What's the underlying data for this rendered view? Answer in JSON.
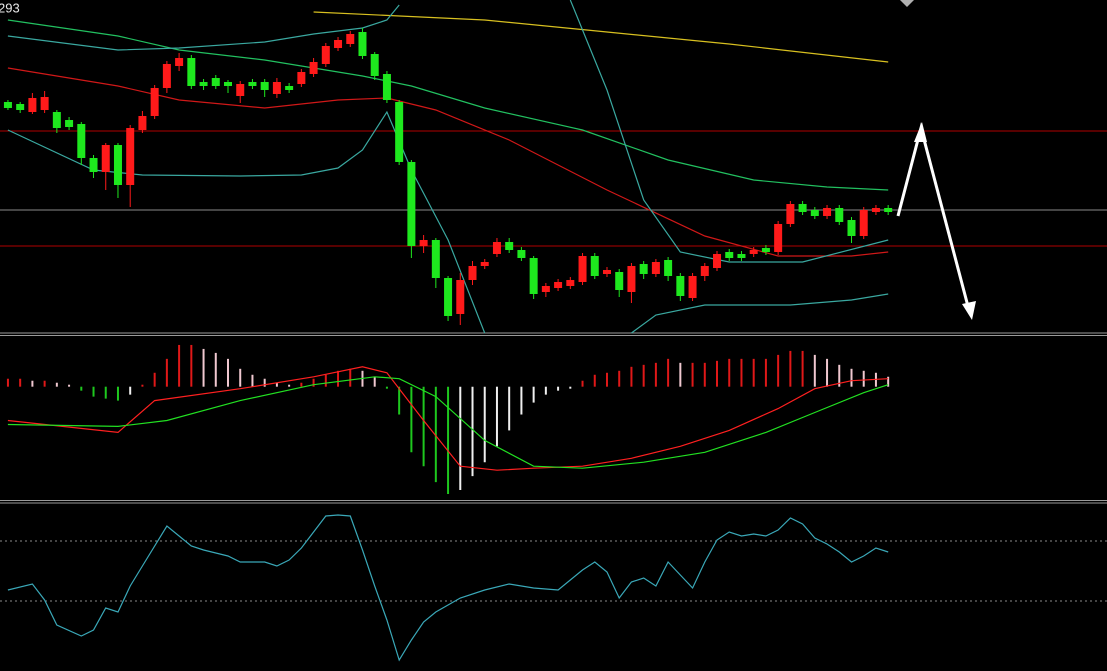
{
  "chart_data": [
    {
      "type": "candlestick",
      "label": "293",
      "xlim": [
        0.35,
        90.9
      ],
      "ylim": [
        0,
        333
      ],
      "up_color": "#ff1a1a",
      "down_color": "#1ee81e",
      "open": [
        231,
        229,
        221,
        223,
        221,
        213,
        209,
        175,
        161,
        188,
        148,
        203,
        217,
        245,
        267,
        275,
        251,
        255,
        251,
        237,
        251,
        251,
        239,
        247,
        249,
        259,
        269,
        285,
        289,
        301,
        279,
        259,
        231,
        171,
        87,
        93,
        55,
        19,
        53,
        67,
        79,
        91,
        83,
        75,
        41,
        45,
        47,
        51,
        77,
        59,
        61,
        41,
        69,
        59,
        73,
        57,
        35,
        57,
        65,
        81,
        79,
        79,
        85,
        81,
        109,
        129,
        123,
        117,
        125,
        113,
        97,
        121,
        125
      ],
      "high": [
        233,
        231,
        240,
        242,
        223,
        216,
        211,
        178,
        190,
        190,
        208,
        222,
        248,
        272,
        280,
        278,
        254,
        258,
        253,
        252,
        254,
        254,
        255,
        250,
        264,
        275,
        290,
        296,
        302,
        305,
        281,
        262,
        233,
        173,
        98,
        95,
        57,
        60,
        72,
        74,
        95,
        95,
        86,
        77,
        50,
        54,
        56,
        80,
        80,
        66,
        64,
        70,
        72,
        74,
        76,
        60,
        60,
        70,
        82,
        84,
        82,
        86,
        88,
        112,
        132,
        132,
        126,
        128,
        128,
        116,
        126,
        128,
        128
      ],
      "low": [
        223,
        220,
        219,
        220,
        200,
        203,
        168,
        155,
        143,
        135,
        126,
        200,
        214,
        240,
        262,
        244,
        243,
        244,
        240,
        230,
        244,
        236,
        235,
        240,
        246,
        256,
        266,
        282,
        286,
        274,
        253,
        230,
        168,
        75,
        80,
        45,
        12,
        8,
        48,
        64,
        76,
        80,
        72,
        34,
        36,
        42,
        44,
        48,
        54,
        56,
        36,
        30,
        54,
        56,
        52,
        32,
        32,
        52,
        62,
        72,
        72,
        76,
        78,
        78,
        106,
        118,
        114,
        114,
        108,
        90,
        94,
        118,
        118
      ],
      "close": [
        225,
        223,
        235,
        236,
        205,
        206,
        175,
        161,
        188,
        148,
        205,
        217,
        245,
        269,
        275,
        247,
        247,
        247,
        247,
        249,
        247,
        243,
        251,
        243,
        261,
        271,
        287,
        293,
        299,
        277,
        257,
        233,
        171,
        87,
        93,
        55,
        17,
        53,
        67,
        71,
        91,
        83,
        75,
        39,
        47,
        51,
        53,
        77,
        57,
        63,
        43,
        67,
        59,
        71,
        57,
        37,
        57,
        67,
        79,
        75,
        75,
        83,
        81,
        109,
        129,
        121,
        117,
        125,
        111,
        97,
        123,
        125,
        121
      ],
      "lines": [
        {
          "color": "#d8c020",
          "x": [
            26,
            40,
            50,
            60,
            73
          ],
          "values": [
            321,
            313,
            301,
            289,
            271
          ]
        },
        {
          "color": "#22c060",
          "x": [
            1,
            10,
            15,
            22,
            30,
            34,
            40,
            48,
            55,
            62,
            68,
            73
          ],
          "values": [
            313,
            297,
            283,
            273,
            257,
            247,
            225,
            203,
            173,
            153,
            146,
            143
          ]
        },
        {
          "color": "#d01818",
          "x": [
            1,
            10,
            15,
            22,
            28,
            32,
            36,
            42,
            50,
            58,
            64,
            70,
            73
          ],
          "values": [
            265,
            247,
            233,
            225,
            233,
            235,
            223,
            193,
            143,
            97,
            77,
            77,
            81
          ]
        },
        {
          "color": "#3aa8a0",
          "x": [
            1,
            10,
            15,
            22,
            26,
            30,
            32,
            33,
            34,
            47,
            50,
            53,
            56,
            60,
            66,
            73
          ],
          "values": [
            297,
            283,
            285,
            291,
            299,
            305,
            313,
            328,
            null,
            333,
            243,
            133,
            81,
            71,
            71,
            93
          ]
        },
        {
          "color": "#3aa8a0",
          "x": [
            1,
            8,
            12,
            20,
            25,
            28,
            30,
            32,
            34,
            37,
            40,
            45,
            52,
            54,
            58,
            65,
            70,
            73
          ],
          "values": [
            203,
            163,
            158,
            157,
            158,
            165,
            183,
            221,
            163,
            93,
            0,
            null,
            0,
            18,
            28,
            28,
            33,
            39
          ]
        }
      ],
      "hlines": [
        {
          "value": 202,
          "color": "#b00000"
        },
        {
          "value": 123,
          "color": "#8a8a8a"
        },
        {
          "value": 87,
          "color": "#b00000"
        }
      ]
    },
    {
      "type": "macd",
      "xlim": [
        0.35,
        90.9
      ],
      "ylim": [
        -114,
        51
      ],
      "pos_color": "#e01818",
      "pos_fade_color": "#f0c8d0",
      "neg_color": "#1ec81e",
      "neg_fade_color": "#f0f0f0",
      "values": [
        8,
        8,
        6,
        6,
        4,
        2,
        -4,
        -10,
        -12,
        -14,
        -8,
        2,
        14,
        28,
        42,
        42,
        38,
        34,
        28,
        18,
        12,
        8,
        4,
        2,
        4,
        8,
        12,
        16,
        18,
        16,
        10,
        -2,
        -28,
        -66,
        -80,
        -96,
        -108,
        -104,
        -90,
        -76,
        -60,
        -44,
        -28,
        -16,
        -8,
        -4,
        -2,
        6,
        12,
        14,
        16,
        20,
        22,
        24,
        28,
        24,
        24,
        24,
        26,
        28,
        28,
        28,
        28,
        32,
        36,
        36,
        32,
        28,
        22,
        18,
        16,
        14,
        10
      ],
      "lines": [
        {
          "color": "#ff2020",
          "x": [
            1,
            10,
            13,
            20,
            26,
            30,
            32,
            35,
            38,
            41,
            44,
            48,
            52,
            56,
            60,
            64,
            67,
            70,
            73
          ],
          "values": [
            -34,
            -46,
            -14,
            -2,
            10,
            20,
            14,
            -34,
            -80,
            -84,
            -82,
            -80,
            -72,
            -60,
            -44,
            -22,
            -2,
            6,
            8
          ]
        },
        {
          "color": "#22e022",
          "x": [
            1,
            10,
            14,
            20,
            26,
            31,
            33,
            36,
            40,
            44,
            48,
            53,
            58,
            63,
            67,
            71,
            73
          ],
          "values": [
            -38,
            -40,
            -34,
            -14,
            2,
            10,
            8,
            -10,
            -54,
            -80,
            -82,
            -76,
            -66,
            -46,
            -26,
            -6,
            2
          ]
        }
      ]
    },
    {
      "type": "line",
      "xlim": [
        0.35,
        90.9
      ],
      "ylim": [
        0,
        167
      ],
      "levels": [
        129,
        69
      ],
      "lines": [
        {
          "color": "#3aa8b8",
          "x": [
            1,
            3,
            4,
            5,
            7,
            8,
            9,
            10,
            11,
            12,
            14,
            15,
            16,
            17,
            19,
            20,
            22,
            23,
            24,
            25,
            27,
            28,
            29,
            30,
            31,
            32,
            33,
            34,
            35,
            36,
            38,
            40,
            42,
            44,
            46,
            48,
            49,
            50,
            51,
            52,
            53,
            54,
            55,
            56,
            57,
            58,
            59,
            60,
            61,
            62,
            63,
            64,
            65,
            66,
            67,
            68,
            69,
            70,
            71,
            72,
            73
          ],
          "values": [
            80,
            86,
            70,
            45,
            34,
            40,
            62,
            58,
            84,
            104,
            144,
            134,
            124,
            120,
            114,
            108,
            108,
            104,
            110,
            122,
            154,
            155,
            154,
            120,
            84,
            50,
            10,
            30,
            48,
            58,
            72,
            80,
            86,
            82,
            80,
            100,
            108,
            98,
            72,
            88,
            92,
            84,
            108,
            95,
            82,
            108,
            130,
            138,
            134,
            136,
            134,
            140,
            152,
            146,
            132,
            126,
            118,
            108,
            114,
            122,
            118
          ]
        }
      ]
    }
  ]
}
